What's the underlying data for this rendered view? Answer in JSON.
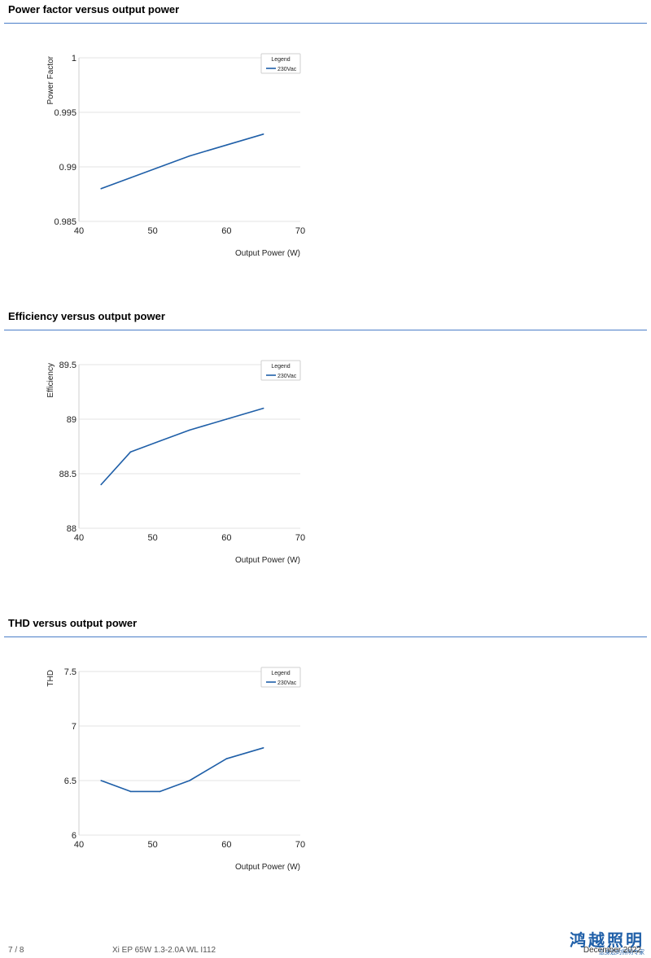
{
  "sections": [
    {
      "title": "Power factor versus output power"
    },
    {
      "title": "Efficiency versus output power"
    },
    {
      "title": "THD versus output power"
    }
  ],
  "chart_data": [
    {
      "type": "line",
      "xlabel": "Output Power (W)",
      "ylabel": "Power Factor",
      "xlim": [
        40,
        70
      ],
      "ylim": [
        0.985,
        1
      ],
      "xticks": [
        40,
        50,
        60,
        70
      ],
      "xtick_labels": [
        "40",
        "50",
        "60",
        "70"
      ],
      "yticks": [
        0.985,
        0.99,
        0.995,
        1
      ],
      "ytick_labels": [
        "0.985",
        "0.99",
        "0.995",
        "1"
      ],
      "legend_title": "Legend",
      "legend_position": "top-right",
      "grid": true,
      "series": [
        {
          "name": "230Vac",
          "color": "#1f5fa8",
          "x": [
            43,
            47,
            51,
            55,
            60,
            65
          ],
          "y": [
            0.988,
            0.989,
            0.99,
            0.991,
            0.992,
            0.993
          ]
        }
      ]
    },
    {
      "type": "line",
      "xlabel": "Output Power (W)",
      "ylabel": "Efficiency",
      "xlim": [
        40,
        70
      ],
      "ylim": [
        88,
        89.5
      ],
      "xticks": [
        40,
        50,
        60,
        70
      ],
      "xtick_labels": [
        "40",
        "50",
        "60",
        "70"
      ],
      "yticks": [
        88,
        88.5,
        89,
        89.5
      ],
      "ytick_labels": [
        "88",
        "88.5",
        "89",
        "89.5"
      ],
      "legend_title": "Legend",
      "legend_position": "top-right",
      "grid": true,
      "series": [
        {
          "name": "230Vac",
          "color": "#1f5fa8",
          "x": [
            43,
            47,
            51,
            55,
            60,
            65
          ],
          "y": [
            88.4,
            88.7,
            88.8,
            88.9,
            89.0,
            89.1
          ]
        }
      ]
    },
    {
      "type": "line",
      "xlabel": "Output Power (W)",
      "ylabel": "THD",
      "xlim": [
        40,
        70
      ],
      "ylim": [
        6,
        7.5
      ],
      "xticks": [
        40,
        50,
        60,
        70
      ],
      "xtick_labels": [
        "40",
        "50",
        "60",
        "70"
      ],
      "yticks": [
        6,
        6.5,
        7,
        7.5
      ],
      "ytick_labels": [
        "6",
        "6.5",
        "7",
        "7.5"
      ],
      "legend_title": "Legend",
      "legend_position": "top-right",
      "grid": true,
      "series": [
        {
          "name": "230Vac",
          "color": "#1f5fa8",
          "x": [
            43,
            47,
            51,
            55,
            60,
            65
          ],
          "y": [
            6.5,
            6.4,
            6.4,
            6.5,
            6.7,
            6.8
          ]
        }
      ]
    }
  ],
  "footer": {
    "page": "7 / 8",
    "doc_name": "Xi EP 65W 1.3-2.0A WL I112",
    "date": "December 2022",
    "logo_text": "鸿越照明",
    "logo_sub": "您身边的照明专家"
  }
}
